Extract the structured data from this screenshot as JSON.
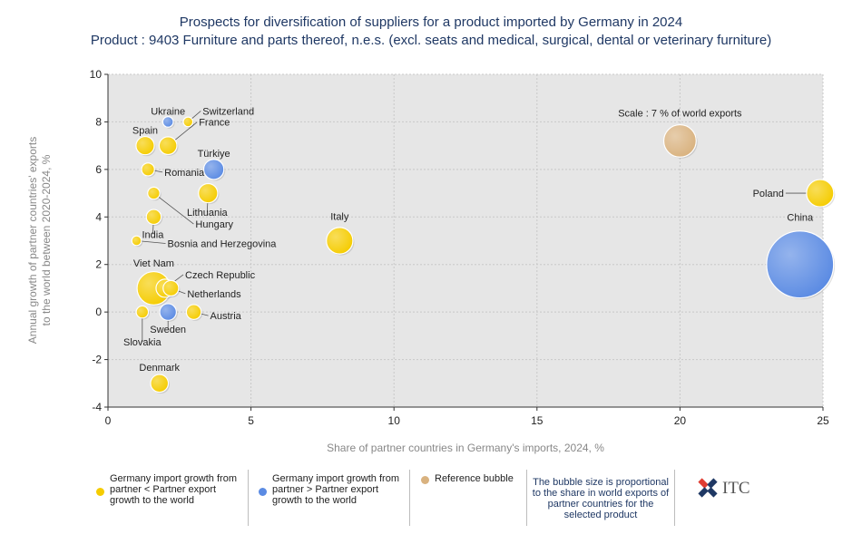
{
  "chart_data": {
    "type": "scatter",
    "title": "Prospects for diversification of suppliers for a product imported by Germany in 2024",
    "subtitle": "Product : 9403 Furniture and parts thereof, n.e.s. (excl. seats and medical, surgical, dental or veterinary furniture)",
    "xlabel": "Share of partner countries in Germany's imports, 2024, %",
    "ylabel": "Annual growth of partner countries' exports to the world between 2020-2024, %",
    "xlim": [
      0,
      25
    ],
    "ylim": [
      -4,
      10
    ],
    "xticks": [
      "0",
      "5",
      "10",
      "15",
      "20",
      "25"
    ],
    "yticks": [
      "10",
      "8",
      "6",
      "4",
      "2",
      "0",
      "-2",
      "-4"
    ],
    "grid": true,
    "colors": {
      "yellow": "#f5cc00",
      "blue": "#5b8be3",
      "reference": "#d9b27f",
      "plot_bg": "#e6e6e6"
    },
    "points": [
      {
        "name": "China",
        "x": 24.2,
        "y": 2.0,
        "size": 24.2,
        "color": "blue"
      },
      {
        "name": "Poland",
        "x": 24.9,
        "y": 5.0,
        "size": 4.0,
        "color": "yellow"
      },
      {
        "name": "Italy",
        "x": 8.1,
        "y": 3.0,
        "size": 3.8,
        "color": "yellow"
      },
      {
        "name": "Viet Nam",
        "x": 1.6,
        "y": 1.0,
        "size": 6.0,
        "color": "yellow"
      },
      {
        "name": "Türkiye",
        "x": 3.7,
        "y": 6.0,
        "size": 2.2,
        "color": "blue"
      },
      {
        "name": "Lithuania",
        "x": 3.5,
        "y": 5.0,
        "size": 2.0,
        "color": "yellow"
      },
      {
        "name": "Spain",
        "x": 1.3,
        "y": 7.0,
        "size": 1.8,
        "color": "yellow"
      },
      {
        "name": "France",
        "x": 2.1,
        "y": 7.0,
        "size": 1.7,
        "color": "yellow"
      },
      {
        "name": "Switzerland",
        "x": 2.8,
        "y": 8.0,
        "size": 0.5,
        "color": "yellow"
      },
      {
        "name": "Ukraine",
        "x": 2.1,
        "y": 8.0,
        "size": 0.6,
        "color": "blue"
      },
      {
        "name": "Romania",
        "x": 1.4,
        "y": 6.0,
        "size": 0.9,
        "color": "yellow"
      },
      {
        "name": "Hungary",
        "x": 1.6,
        "y": 5.0,
        "size": 0.8,
        "color": "yellow"
      },
      {
        "name": "India",
        "x": 1.6,
        "y": 4.0,
        "size": 1.2,
        "color": "yellow"
      },
      {
        "name": "Bosnia and Herzegovina",
        "x": 1.0,
        "y": 3.0,
        "size": 0.5,
        "color": "yellow"
      },
      {
        "name": "Czech Republic",
        "x": 2.0,
        "y": 1.0,
        "size": 1.8,
        "color": "yellow"
      },
      {
        "name": "Netherlands",
        "x": 2.2,
        "y": 1.0,
        "size": 1.3,
        "color": "yellow"
      },
      {
        "name": "Sweden",
        "x": 2.1,
        "y": 0.0,
        "size": 1.5,
        "color": "blue"
      },
      {
        "name": "Austria",
        "x": 3.0,
        "y": 0.0,
        "size": 1.2,
        "color": "yellow"
      },
      {
        "name": "Slovakia",
        "x": 1.2,
        "y": 0.0,
        "size": 0.8,
        "color": "yellow"
      },
      {
        "name": "Denmark",
        "x": 1.8,
        "y": -3.0,
        "size": 1.7,
        "color": "yellow"
      }
    ],
    "reference_bubble": {
      "label": "Scale : 7 % of world exports",
      "x": 20.0,
      "y": 7.2,
      "size": 7,
      "color": "reference"
    }
  },
  "legend": {
    "item1": "Germany import growth from partner < Partner export growth to the world",
    "item2": "Germany import growth from partner > Partner export growth to the world",
    "item3": "Reference bubble",
    "note": "The bubble size is proportional to the share in world exports of partner countries for the selected product"
  },
  "logo": {
    "text": "ITC"
  }
}
